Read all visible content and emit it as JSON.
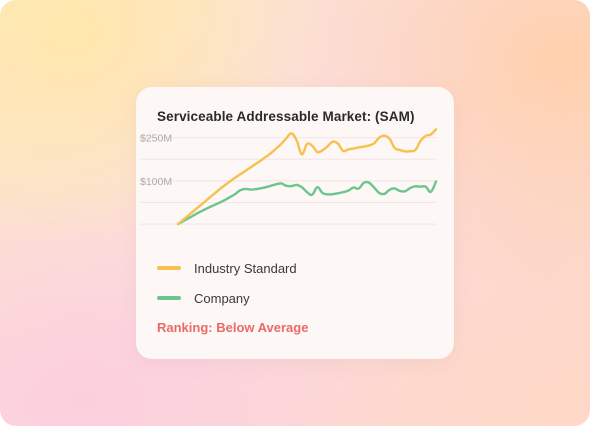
{
  "card": {
    "title": "Serviceable Addressable Market: (SAM)",
    "ranking": "Ranking: Below Average"
  },
  "colors": {
    "industry": "#f8c04e",
    "company": "#6cc58c",
    "ranking": "#ea6a6a"
  },
  "chart_data": {
    "type": "line",
    "title": "Serviceable Addressable Market: (SAM)",
    "y_ticks": [
      {
        "label": "$250M",
        "value": 250
      },
      {
        "label": "$100M",
        "value": 100
      }
    ],
    "ylim": [
      -60,
      280
    ],
    "grid": true,
    "legend_position": "bottom",
    "x": [
      0,
      1,
      2,
      3,
      4,
      5,
      6,
      7,
      8,
      9,
      10,
      11,
      12,
      13,
      14,
      15,
      16,
      17,
      18,
      19,
      20,
      21,
      22,
      23,
      24,
      25,
      26,
      27,
      28,
      29,
      30,
      31,
      32,
      33,
      34,
      35,
      36,
      37,
      38,
      39,
      40,
      41,
      42,
      43,
      44,
      45,
      46,
      47,
      48,
      49,
      50
    ],
    "series": [
      {
        "name": "Industry Standard",
        "color": "#f8c04e",
        "values": [
          -50,
          -35,
          -20,
          -5,
          10,
          25,
          40,
          55,
          70,
          84,
          97,
          110,
          122,
          134,
          146,
          158,
          170,
          183,
          196,
          212,
          228,
          248,
          265,
          240,
          192,
          228,
          222,
          200,
          206,
          220,
          236,
          229,
          204,
          209,
          212,
          216,
          219,
          223,
          230,
          250,
          257,
          246,
          214,
          207,
          202,
          203,
          207,
          239,
          256,
          261,
          279
        ]
      },
      {
        "name": "Company",
        "color": "#6cc58c",
        "values": [
          -50,
          -40,
          -30,
          -20,
          -10,
          -1,
          8,
          16,
          24,
          33,
          43,
          53,
          67,
          72,
          70,
          71,
          74,
          78,
          83,
          88,
          91,
          83,
          82,
          86,
          78,
          61,
          52,
          78,
          58,
          53,
          54,
          57,
          61,
          66,
          77,
          73,
          93,
          94,
          77,
          58,
          55,
          69,
          74,
          65,
          64,
          75,
          81,
          80,
          80,
          62,
          98
        ]
      }
    ]
  },
  "legend": [
    {
      "label": "Industry Standard",
      "color": "#f8c04e"
    },
    {
      "label": "Company",
      "color": "#6cc58c"
    }
  ]
}
